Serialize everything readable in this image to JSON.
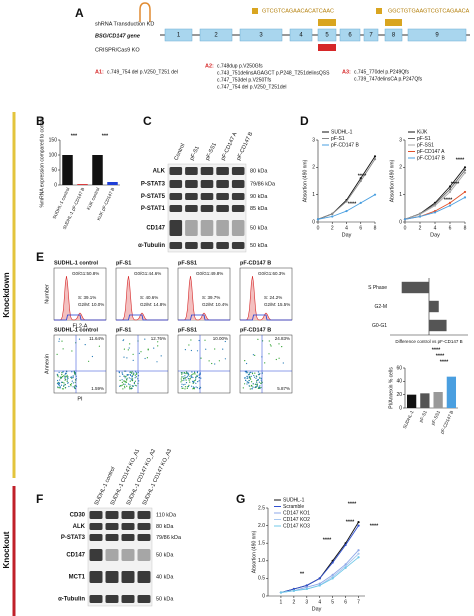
{
  "letters": [
    "A",
    "B",
    "C",
    "D",
    "E",
    "F",
    "G"
  ],
  "side_labels": {
    "knockdown": "Knockdown",
    "knockout": "Knockout"
  },
  "panel_a": {
    "shrna": "shRNA Transduction KD",
    "crispr": "CRISPR/Cas9 KO",
    "gene": "BSG/CD147 gene",
    "exons": [
      "1",
      "2",
      "3",
      "4",
      "5",
      "6",
      "7",
      "8",
      "9"
    ],
    "sequences": [
      "GTCGTCAGAACACATCAAC",
      "GGCTGTGAAGTCGTCAGAACA"
    ],
    "alleles": [
      {
        "name": "A1:",
        "lines": [
          "c.749_754 del p.V250_T251 del"
        ]
      },
      {
        "name": "A2:",
        "lines": [
          "c.748dup p.V250Gfs",
          "c.743_751delinsAGAGCT p.P248_T251delinsQSS",
          "c.747_753del p.V250Tfs",
          "c.747_754 del p.V250_T251del"
        ]
      },
      {
        "name": "A3:",
        "lines": [
          "c.745_770del p.P249Qfs",
          "c.739_747delinsCA p.P247Qfs"
        ]
      }
    ]
  },
  "blot_c": {
    "lanes": [
      "Control",
      "pF-S1",
      "pF-SS1",
      "pF-CD147 A",
      "pF-CD147 B"
    ],
    "rows": [
      {
        "name": "ALK",
        "size": "80 kDa"
      },
      {
        "name": "P-STAT3",
        "size": "79/86 kDa"
      },
      {
        "name": "P-STAT5",
        "size": "90 kDa"
      },
      {
        "name": "P-STAT1",
        "size": "85 kDa"
      },
      {
        "name": "CD147",
        "size": "50 kDa"
      },
      {
        "name": "α-Tubulin",
        "size": "50 kDa"
      }
    ]
  },
  "blot_f": {
    "lanes": [
      "SUDHL-1 control",
      "SUDHL-1 CD147 KO_A1",
      "SUDHL-1 CD147 KO_A2",
      "SUDHL-1 CD147 KO_A3"
    ],
    "rows": [
      {
        "name": "CD30",
        "size": "110 kDa"
      },
      {
        "name": "ALK",
        "size": "80 kDa"
      },
      {
        "name": "P-STAT3",
        "size": "79/86 kDa"
      },
      {
        "name": "CD147",
        "size": "50 kDa"
      },
      {
        "name": "MCT1",
        "size": "40 kDa"
      },
      {
        "name": "α-Tubulin",
        "size": "50 kDa"
      }
    ]
  },
  "flow_e": {
    "hist_y": "Number",
    "hist_x": "FL2-A",
    "annexin_y": "Annexin",
    "annexin_x": "PI",
    "samples": [
      {
        "title": "SUDHL-1 control",
        "g0g1": "G0/G1:50.8%",
        "s": "S: 39.1%",
        "g2m": "G2/M: 10.0%",
        "q_upper": "11.64%",
        "q_lower": "1.59%"
      },
      {
        "title": "pF-S1",
        "g0g1": "G0/G1:44.6%",
        "s": "S: 40.6%",
        "g2m": "G2/M: 14.8%",
        "q_upper": "12.76%"
      },
      {
        "title": "pF-SS1",
        "g0g1": "G0/G1:49.8%",
        "s": "S: 39.7%",
        "g2m": "G2/M: 10.4%",
        "q_upper": "10.00%"
      },
      {
        "title": "pF-CD147 B",
        "g0g1": "G0/G1:60.3%",
        "s": "S: 24.2%",
        "g2m": "G2/M: 15.5%",
        "q_upper": "24.83%",
        "q_lower": "5.87%"
      }
    ]
  },
  "chart_data": [
    {
      "type": "bar",
      "y_label": "%mRNA expression compared to control",
      "categories": [
        "SUDHL-1 control",
        "SUDHL-1 pF-CD147 B",
        "KiJK control",
        "KiJK pF-CD147 B"
      ],
      "values": [
        100,
        3,
        100,
        10
      ],
      "colors": [
        "#111111",
        "#d62728",
        "#111111",
        "#1f3fd6"
      ],
      "ylim": [
        0,
        150
      ],
      "yticks": [
        0,
        50,
        100,
        150
      ],
      "annotations": [
        "***",
        "***"
      ]
    },
    {
      "type": "line",
      "x_label": "Day",
      "y_label": "Absortion (490 nm)",
      "x": [
        0,
        2,
        4,
        6,
        8
      ],
      "series": [
        {
          "name": "SUDHL-1",
          "color": "#111111",
          "values": [
            0.1,
            0.3,
            0.8,
            1.6,
            2.4
          ]
        },
        {
          "name": "pF-S1",
          "color": "#888888",
          "values": [
            0.1,
            0.3,
            0.75,
            1.5,
            2.3
          ]
        },
        {
          "name": "pF-CD147 B",
          "color": "#4a9fe0",
          "values": [
            0.1,
            0.2,
            0.4,
            0.7,
            1.0
          ]
        }
      ],
      "xlim": [
        0,
        8
      ],
      "xticks": [
        0,
        2,
        4,
        6,
        8
      ],
      "ylim": [
        0,
        3
      ],
      "yticks": [
        0,
        1,
        2,
        3
      ],
      "annotations": [
        "****",
        "****"
      ]
    },
    {
      "type": "line",
      "x_label": "Day",
      "y_label": "Absortion (490 nm)",
      "x": [
        0,
        2,
        4,
        6,
        8
      ],
      "series": [
        {
          "name": "KiJK",
          "color": "#111111",
          "values": [
            0.1,
            0.3,
            0.7,
            1.3,
            2.0
          ]
        },
        {
          "name": "pF-S1",
          "color": "#666666",
          "values": [
            0.1,
            0.3,
            0.65,
            1.2,
            1.9
          ]
        },
        {
          "name": "pF-SS1",
          "color": "#aaaaaa",
          "values": [
            0.1,
            0.28,
            0.6,
            1.1,
            1.8
          ]
        },
        {
          "name": "pF-CD147 A",
          "color": "#e0502a",
          "values": [
            0.1,
            0.2,
            0.4,
            0.7,
            1.1
          ]
        },
        {
          "name": "pF-CD147 B",
          "color": "#4a9fe0",
          "values": [
            0.1,
            0.2,
            0.35,
            0.6,
            0.9
          ]
        }
      ],
      "xlim": [
        0,
        8
      ],
      "xticks": [
        0,
        2,
        4,
        6,
        8
      ],
      "ylim": [
        0,
        3
      ],
      "yticks": [
        0,
        1,
        2,
        3
      ],
      "annotations": [
        "****",
        "****",
        "****"
      ]
    },
    {
      "type": "hbar",
      "x_label": "Difference control vs pF-CD147 B",
      "categories": [
        "S Phase",
        "G2-M",
        "G0-G1"
      ],
      "values": [
        -14,
        5,
        9
      ],
      "color": "#555555",
      "xlim": [
        -20,
        20
      ]
    },
    {
      "type": "bar",
      "y_label": "PI/Annexin % cells",
      "categories": [
        "SUDHL-1",
        "pF-S1",
        "pF-SS1",
        "pF-CD147 B"
      ],
      "values": [
        20,
        22,
        24,
        47
      ],
      "colors": [
        "#111111",
        "#555555",
        "#999999",
        "#4a9fe0"
      ],
      "ylim": [
        0,
        60
      ],
      "yticks": [
        0,
        20,
        40,
        60
      ],
      "annotations": [
        "****",
        "****",
        "****"
      ]
    },
    {
      "type": "line",
      "x_label": "Day",
      "y_label": "Absortion (490 nm)",
      "x": [
        1,
        2,
        3,
        4,
        5,
        6,
        7
      ],
      "series": [
        {
          "name": "SUDHL-1",
          "color": "#111111",
          "values": [
            0.1,
            0.2,
            0.3,
            0.5,
            1.0,
            1.5,
            2.1
          ]
        },
        {
          "name": "Scramble",
          "color": "#3050d0",
          "values": [
            0.1,
            0.2,
            0.3,
            0.5,
            0.95,
            1.45,
            2.0
          ]
        },
        {
          "name": "CD147 KO1",
          "color": "#8fa8e8",
          "values": [
            0.1,
            0.15,
            0.25,
            0.35,
            0.6,
            0.9,
            1.3
          ]
        },
        {
          "name": "CD147 KO2",
          "color": "#a8c8f0",
          "values": [
            0.1,
            0.15,
            0.2,
            0.3,
            0.55,
            0.85,
            1.2
          ]
        },
        {
          "name": "CD147 KO3",
          "color": "#70c8e8",
          "values": [
            0.1,
            0.15,
            0.2,
            0.3,
            0.5,
            0.8,
            1.1
          ]
        }
      ],
      "xlim": [
        0,
        7.5
      ],
      "xticks": [
        1,
        2,
        3,
        4,
        5,
        6,
        7
      ],
      "ylim": [
        0,
        2.5
      ],
      "yticks": [
        0,
        0.5,
        {
          "value": 1,
          "label": "1.0"
        },
        1.5,
        {
          "value": 2,
          "label": "2.0"
        },
        2.5
      ],
      "annotations": [
        "**",
        "****",
        "****",
        "****",
        "****"
      ]
    }
  ]
}
